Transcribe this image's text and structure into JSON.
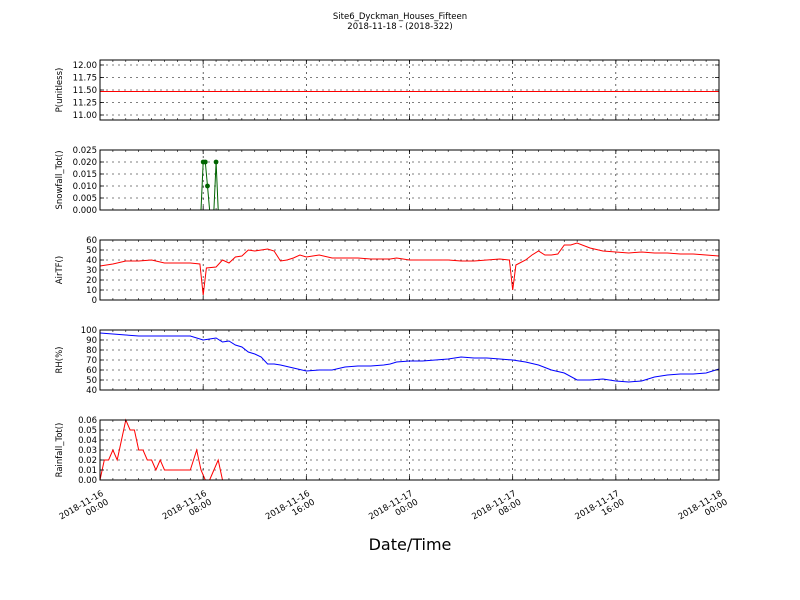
{
  "title": "Site6_Dyckman_Houses_Fifteen",
  "subtitle": "2018-11-18 - (2018-322)",
  "xlabel": "Date/Time",
  "x_ticks": [
    {
      "l1": "2018-11-16",
      "l2": "00:00"
    },
    {
      "l1": "2018-11-16",
      "l2": "08:00"
    },
    {
      "l1": "2018-11-16",
      "l2": "16:00"
    },
    {
      "l1": "2018-11-17",
      "l2": "00:00"
    },
    {
      "l1": "2018-11-17",
      "l2": "08:00"
    },
    {
      "l1": "2018-11-17",
      "l2": "16:00"
    },
    {
      "l1": "2018-11-18",
      "l2": "00:00"
    }
  ],
  "chart_data": [
    {
      "type": "line",
      "ylabel": "P(unitless)",
      "color": "#ff0000",
      "ylim": [
        10.9,
        12.1
      ],
      "yticks": [
        "11.00",
        "11.25",
        "11.50",
        "11.75",
        "12.00"
      ],
      "xlim": [
        "2018-11-16 00:00",
        "2018-11-18 00:00"
      ],
      "grid": true,
      "x": [
        "2018-11-16 00:00",
        "2018-11-18 00:00"
      ],
      "values": [
        11.47,
        11.47
      ]
    },
    {
      "type": "line",
      "ylabel": "Snowfall_Tot()",
      "color": "#006400",
      "markers": true,
      "ylim": [
        0,
        0.025
      ],
      "yticks": [
        "0.000",
        "0.005",
        "0.010",
        "0.015",
        "0.020",
        "0.025"
      ],
      "xlim": [
        "2018-11-16 00:00",
        "2018-11-18 00:00"
      ],
      "grid": true,
      "x": [
        "2018-11-16 00:00",
        "2018-11-16 04:00",
        "2018-11-16 07:50",
        "2018-11-16 08:00",
        "2018-11-16 08:10",
        "2018-11-16 08:20",
        "2018-11-16 08:30",
        "2018-11-16 08:40",
        "2018-11-16 08:50",
        "2018-11-16 09:00",
        "2018-11-16 09:10",
        "2018-11-16 12:00",
        "2018-11-17 00:00",
        "2018-11-18 00:00"
      ],
      "values": [
        0.0,
        0.0,
        0.0,
        0.02,
        0.02,
        0.01,
        0.0,
        0.0,
        0.0,
        0.02,
        0.0,
        0.0,
        0.0,
        0.0
      ]
    },
    {
      "type": "line",
      "ylabel": "AirTF()",
      "color": "#ff0000",
      "ylim": [
        0,
        60
      ],
      "yticks": [
        "0",
        "10",
        "20",
        "30",
        "40",
        "50",
        "60"
      ],
      "xlim": [
        "2018-11-16 00:00",
        "2018-11-18 00:00"
      ],
      "grid": true,
      "x": [
        "2018-11-16 00:00",
        "2018-11-16 01:00",
        "2018-11-16 02:00",
        "2018-11-16 03:00",
        "2018-11-16 04:00",
        "2018-11-16 05:00",
        "2018-11-16 06:00",
        "2018-11-16 07:00",
        "2018-11-16 07:45",
        "2018-11-16 08:00",
        "2018-11-16 08:15",
        "2018-11-16 09:00",
        "2018-11-16 09:30",
        "2018-11-16 10:00",
        "2018-11-16 10:30",
        "2018-11-16 11:00",
        "2018-11-16 11:30",
        "2018-11-16 12:00",
        "2018-11-16 12:30",
        "2018-11-16 13:00",
        "2018-11-16 13:30",
        "2018-11-16 14:00",
        "2018-11-16 14:30",
        "2018-11-16 15:00",
        "2018-11-16 15:30",
        "2018-11-16 16:00",
        "2018-11-16 17:00",
        "2018-11-16 18:00",
        "2018-11-16 19:00",
        "2018-11-16 20:00",
        "2018-11-16 21:00",
        "2018-11-16 22:00",
        "2018-11-16 22:30",
        "2018-11-16 23:00",
        "2018-11-17 00:00",
        "2018-11-17 01:00",
        "2018-11-17 02:00",
        "2018-11-17 03:00",
        "2018-11-17 04:00",
        "2018-11-17 05:00",
        "2018-11-17 06:00",
        "2018-11-17 07:00",
        "2018-11-17 07:45",
        "2018-11-17 08:00",
        "2018-11-17 08:15",
        "2018-11-17 09:00",
        "2018-11-17 09:30",
        "2018-11-17 10:00",
        "2018-11-17 10:30",
        "2018-11-17 11:00",
        "2018-11-17 11:30",
        "2018-11-17 12:00",
        "2018-11-17 12:30",
        "2018-11-17 13:00",
        "2018-11-17 14:00",
        "2018-11-17 15:00",
        "2018-11-17 16:00",
        "2018-11-17 17:00",
        "2018-11-17 18:00",
        "2018-11-17 19:00",
        "2018-11-17 20:00",
        "2018-11-17 21:00",
        "2018-11-17 22:00",
        "2018-11-17 23:00",
        "2018-11-18 00:00"
      ],
      "values": [
        34,
        36,
        39,
        39,
        40,
        37,
        37,
        37,
        36,
        5,
        32,
        33,
        40,
        37,
        43,
        44,
        50,
        49,
        50,
        51,
        49,
        39,
        40,
        42,
        45,
        43,
        45,
        42,
        42,
        42,
        41,
        41,
        41,
        42,
        40,
        40,
        40,
        40,
        39,
        39,
        40,
        41,
        40,
        10,
        35,
        40,
        45,
        49,
        45,
        45,
        46,
        55,
        55,
        57,
        52,
        49,
        48,
        47,
        48,
        47,
        47,
        46,
        46,
        45,
        44
      ]
    },
    {
      "type": "line",
      "ylabel": "RH(%)",
      "color": "#0000ff",
      "ylim": [
        40,
        100
      ],
      "yticks": [
        "40",
        "50",
        "60",
        "70",
        "80",
        "90",
        "100"
      ],
      "xlim": [
        "2018-11-16 00:00",
        "2018-11-18 00:00"
      ],
      "grid": true,
      "x": [
        "2018-11-16 00:00",
        "2018-11-16 01:00",
        "2018-11-16 02:00",
        "2018-11-16 03:00",
        "2018-11-16 04:00",
        "2018-11-16 05:00",
        "2018-11-16 06:00",
        "2018-11-16 07:00",
        "2018-11-16 08:00",
        "2018-11-16 08:30",
        "2018-11-16 09:00",
        "2018-11-16 09:30",
        "2018-11-16 10:00",
        "2018-11-16 10:30",
        "2018-11-16 11:00",
        "2018-11-16 11:30",
        "2018-11-16 12:00",
        "2018-11-16 12:30",
        "2018-11-16 13:00",
        "2018-11-16 13:30",
        "2018-11-16 14:00",
        "2018-11-16 15:00",
        "2018-11-16 16:00",
        "2018-11-16 17:00",
        "2018-11-16 18:00",
        "2018-11-16 19:00",
        "2018-11-16 20:00",
        "2018-11-16 21:00",
        "2018-11-16 22:00",
        "2018-11-16 22:30",
        "2018-11-16 23:00",
        "2018-11-17 00:00",
        "2018-11-17 01:00",
        "2018-11-17 02:00",
        "2018-11-17 03:00",
        "2018-11-17 04:00",
        "2018-11-17 05:00",
        "2018-11-17 06:00",
        "2018-11-17 07:00",
        "2018-11-17 08:00",
        "2018-11-17 09:00",
        "2018-11-17 10:00",
        "2018-11-17 11:00",
        "2018-11-17 12:00",
        "2018-11-17 13:00",
        "2018-11-17 14:00",
        "2018-11-17 15:00",
        "2018-11-17 16:00",
        "2018-11-17 17:00",
        "2018-11-17 18:00",
        "2018-11-17 19:00",
        "2018-11-17 20:00",
        "2018-11-17 21:00",
        "2018-11-17 22:00",
        "2018-11-17 23:00",
        "2018-11-18 00:00"
      ],
      "values": [
        97,
        96,
        95,
        94,
        94,
        94,
        94,
        94,
        90,
        91,
        92,
        88,
        89,
        85,
        83,
        78,
        76,
        73,
        66,
        66,
        65,
        62,
        59,
        60,
        60,
        63,
        64,
        64,
        65,
        66,
        68,
        69,
        69,
        70,
        71,
        73,
        72,
        72,
        71,
        70,
        68,
        65,
        60,
        57,
        50,
        50,
        51,
        49,
        48,
        49,
        53,
        55,
        56,
        56,
        57,
        61
      ]
    },
    {
      "type": "line",
      "ylabel": "Rainfall_Tot()",
      "color": "#ff0000",
      "ylim": [
        0,
        0.06
      ],
      "yticks": [
        "0.00",
        "0.01",
        "0.02",
        "0.03",
        "0.04",
        "0.05",
        "0.06"
      ],
      "xlim": [
        "2018-11-16 00:00",
        "2018-11-18 00:00"
      ],
      "grid": true,
      "x": [
        "2018-11-16 00:00",
        "2018-11-16 00:20",
        "2018-11-16 00:40",
        "2018-11-16 01:00",
        "2018-11-16 01:20",
        "2018-11-16 01:40",
        "2018-11-16 02:00",
        "2018-11-16 02:20",
        "2018-11-16 02:40",
        "2018-11-16 03:00",
        "2018-11-16 03:20",
        "2018-11-16 03:40",
        "2018-11-16 04:00",
        "2018-11-16 04:20",
        "2018-11-16 04:40",
        "2018-11-16 05:00",
        "2018-11-16 05:30",
        "2018-11-16 06:00",
        "2018-11-16 06:30",
        "2018-11-16 07:00",
        "2018-11-16 07:30",
        "2018-11-16 07:50",
        "2018-11-16 08:10",
        "2018-11-16 08:30",
        "2018-11-16 08:50",
        "2018-11-16 09:10",
        "2018-11-16 09:30",
        "2018-11-16 10:00",
        "2018-11-17 00:00",
        "2018-11-18 00:00"
      ],
      "values": [
        0.0,
        0.02,
        0.02,
        0.03,
        0.02,
        0.04,
        0.06,
        0.05,
        0.05,
        0.03,
        0.03,
        0.02,
        0.02,
        0.01,
        0.02,
        0.01,
        0.01,
        0.01,
        0.01,
        0.01,
        0.03,
        0.01,
        0.0,
        0.0,
        0.01,
        0.02,
        0.0,
        0.0,
        0.0,
        0.0
      ]
    }
  ]
}
